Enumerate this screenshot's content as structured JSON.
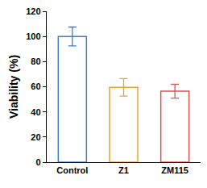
{
  "chart_data": {
    "type": "bar",
    "y_label": "Viability (%)",
    "categories": [
      "Control",
      "Z1",
      "ZM115"
    ],
    "values": [
      100,
      59.5,
      56.5
    ],
    "errors": [
      7.5,
      7,
      5.5
    ],
    "colors": [
      "#3d7fc1",
      "#e6a23a",
      "#d9534f"
    ],
    "ylim": [
      0,
      120
    ],
    "yticks": [
      0,
      20,
      40,
      60,
      80,
      100,
      120
    ],
    "grid": false
  }
}
